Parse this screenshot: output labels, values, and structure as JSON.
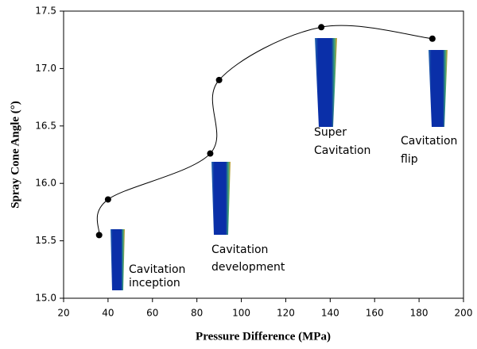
{
  "chart_data": {
    "type": "scatter-line",
    "xlabel": "Pressure Difference (MPa)",
    "ylabel": "Spray Cone Angle (°)",
    "series": [
      {
        "color": "#000000",
        "x": [
          36,
          40,
          86,
          90,
          136,
          186
        ],
        "values": [
          15.55,
          15.86,
          16.26,
          16.9,
          17.36,
          17.26
        ]
      }
    ],
    "xlim": [
      20,
      200
    ],
    "xticks": [
      20,
      40,
      60,
      80,
      100,
      120,
      140,
      160,
      180,
      200
    ],
    "ylim": [
      15.0,
      17.5
    ],
    "yticks": [
      {
        "value": 15.0,
        "label": "15.0"
      },
      15.5,
      {
        "value": 16.0,
        "label": "16.0"
      },
      16.5,
      {
        "value": 17.0,
        "label": "17.0"
      },
      17.5
    ],
    "annotations": [
      {
        "lines": [
          "Cavitation",
          "inception"
        ]
      },
      {
        "lines": [
          "Cavitation",
          "development"
        ]
      },
      {
        "lines": [
          "Super",
          "Cavitation"
        ]
      },
      {
        "lines": [
          "Cavitation",
          "flip"
        ]
      }
    ]
  }
}
